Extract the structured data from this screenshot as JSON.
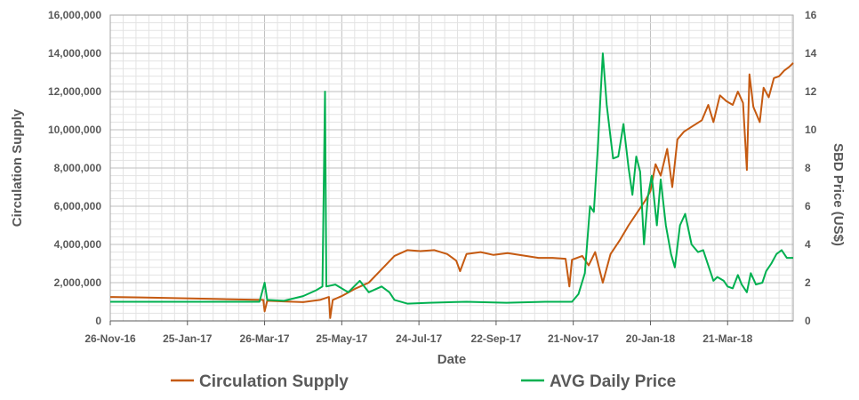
{
  "chart_data": {
    "type": "line",
    "xlabel": "Date",
    "ylabel_left": "Circulation Supply",
    "ylabel_right": "SBD Price (US$)",
    "x_ticks": [
      "26-Nov-16",
      "25-Jan-17",
      "26-Mar-17",
      "25-May-17",
      "24-Jul-17",
      "22-Sep-17",
      "21-Nov-17",
      "20-Jan-18",
      "21-Mar-18"
    ],
    "xlim": [
      "2016-11-26",
      "2018-05-11"
    ],
    "ylim_left": [
      0,
      16000000
    ],
    "ylim_right": [
      0,
      16
    ],
    "y_ticks_left": [
      "0",
      "2,000,000",
      "4,000,000",
      "6,000,000",
      "8,000,000",
      "10,000,000",
      "12,000,000",
      "14,000,000",
      "16,000,000"
    ],
    "y_ticks_right": [
      "0",
      "2",
      "4",
      "6",
      "8",
      "10",
      "12",
      "14",
      "16"
    ],
    "grid": true,
    "legend": "bottom",
    "series": [
      {
        "name": "Circulation Supply",
        "axis": "left",
        "color": "#C55A11",
        "points": [
          [
            "2016-11-26",
            1250000
          ],
          [
            "2016-12-20",
            1230000
          ],
          [
            "2017-01-15",
            1190000
          ],
          [
            "2017-02-10",
            1160000
          ],
          [
            "2017-03-05",
            1120000
          ],
          [
            "2017-03-25",
            1100000
          ],
          [
            "2017-03-26",
            500000
          ],
          [
            "2017-03-28",
            1050000
          ],
          [
            "2017-04-10",
            1020000
          ],
          [
            "2017-04-25",
            980000
          ],
          [
            "2017-05-08",
            1100000
          ],
          [
            "2017-05-15",
            1250000
          ],
          [
            "2017-05-16",
            150000
          ],
          [
            "2017-05-18",
            1100000
          ],
          [
            "2017-05-25",
            1300000
          ],
          [
            "2017-06-05",
            1700000
          ],
          [
            "2017-06-15",
            2000000
          ],
          [
            "2017-06-25",
            2700000
          ],
          [
            "2017-07-05",
            3400000
          ],
          [
            "2017-07-15",
            3700000
          ],
          [
            "2017-07-25",
            3650000
          ],
          [
            "2017-08-05",
            3700000
          ],
          [
            "2017-08-15",
            3500000
          ],
          [
            "2017-08-22",
            3150000
          ],
          [
            "2017-08-25",
            2600000
          ],
          [
            "2017-08-30",
            3500000
          ],
          [
            "2017-09-10",
            3600000
          ],
          [
            "2017-09-20",
            3450000
          ],
          [
            "2017-10-01",
            3550000
          ],
          [
            "2017-10-15",
            3400000
          ],
          [
            "2017-10-25",
            3300000
          ],
          [
            "2017-11-05",
            3300000
          ],
          [
            "2017-11-15",
            3250000
          ],
          [
            "2017-11-18",
            1800000
          ],
          [
            "2017-11-20",
            3200000
          ],
          [
            "2017-11-28",
            3400000
          ],
          [
            "2017-12-03",
            2900000
          ],
          [
            "2017-12-08",
            3600000
          ],
          [
            "2017-12-14",
            2000000
          ],
          [
            "2017-12-20",
            3500000
          ],
          [
            "2017-12-27",
            4200000
          ],
          [
            "2018-01-03",
            5000000
          ],
          [
            "2018-01-10",
            5700000
          ],
          [
            "2018-01-16",
            6300000
          ],
          [
            "2018-01-20",
            6800000
          ],
          [
            "2018-01-24",
            8200000
          ],
          [
            "2018-01-28",
            7600000
          ],
          [
            "2018-02-02",
            9000000
          ],
          [
            "2018-02-06",
            7000000
          ],
          [
            "2018-02-10",
            9500000
          ],
          [
            "2018-02-15",
            9900000
          ],
          [
            "2018-02-22",
            10200000
          ],
          [
            "2018-03-01",
            10500000
          ],
          [
            "2018-03-06",
            11300000
          ],
          [
            "2018-03-10",
            10400000
          ],
          [
            "2018-03-15",
            11800000
          ],
          [
            "2018-03-20",
            11500000
          ],
          [
            "2018-03-25",
            11300000
          ],
          [
            "2018-03-29",
            12000000
          ],
          [
            "2018-04-02",
            11400000
          ],
          [
            "2018-04-05",
            7900000
          ],
          [
            "2018-04-07",
            12900000
          ],
          [
            "2018-04-10",
            11200000
          ],
          [
            "2018-04-15",
            10400000
          ],
          [
            "2018-04-18",
            12200000
          ],
          [
            "2018-04-22",
            11700000
          ],
          [
            "2018-04-26",
            12700000
          ],
          [
            "2018-04-30",
            12800000
          ],
          [
            "2018-05-04",
            13100000
          ],
          [
            "2018-05-08",
            13300000
          ],
          [
            "2018-05-11",
            13500000
          ]
        ]
      },
      {
        "name": "AVG Daily Price",
        "axis": "right",
        "color": "#00B050",
        "points": [
          [
            "2016-11-26",
            1.0
          ],
          [
            "2017-01-01",
            1.0
          ],
          [
            "2017-02-15",
            1.0
          ],
          [
            "2017-03-22",
            1.0
          ],
          [
            "2017-03-26",
            2.0
          ],
          [
            "2017-03-28",
            1.1
          ],
          [
            "2017-04-10",
            1.05
          ],
          [
            "2017-04-25",
            1.3
          ],
          [
            "2017-05-05",
            1.6
          ],
          [
            "2017-05-10",
            1.8
          ],
          [
            "2017-05-12",
            12.0
          ],
          [
            "2017-05-13",
            1.8
          ],
          [
            "2017-05-20",
            1.9
          ],
          [
            "2017-05-30",
            1.5
          ],
          [
            "2017-06-08",
            2.1
          ],
          [
            "2017-06-15",
            1.5
          ],
          [
            "2017-06-25",
            1.8
          ],
          [
            "2017-07-01",
            1.5
          ],
          [
            "2017-07-05",
            1.1
          ],
          [
            "2017-07-15",
            0.9
          ],
          [
            "2017-08-01",
            0.95
          ],
          [
            "2017-08-30",
            1.0
          ],
          [
            "2017-09-30",
            0.95
          ],
          [
            "2017-10-30",
            1.0
          ],
          [
            "2017-11-20",
            1.0
          ],
          [
            "2017-11-25",
            1.4
          ],
          [
            "2017-11-30",
            2.5
          ],
          [
            "2017-12-04",
            6.0
          ],
          [
            "2017-12-07",
            5.7
          ],
          [
            "2017-12-10",
            9.0
          ],
          [
            "2017-12-14",
            14.0
          ],
          [
            "2017-12-17",
            11.3
          ],
          [
            "2017-12-20",
            9.6
          ],
          [
            "2017-12-22",
            8.5
          ],
          [
            "2017-12-26",
            8.6
          ],
          [
            "2017-12-30",
            10.3
          ],
          [
            "2018-01-03",
            8.0
          ],
          [
            "2018-01-06",
            6.6
          ],
          [
            "2018-01-09",
            8.6
          ],
          [
            "2018-01-12",
            7.8
          ],
          [
            "2018-01-15",
            4.0
          ],
          [
            "2018-01-18",
            6.5
          ],
          [
            "2018-01-21",
            7.6
          ],
          [
            "2018-01-25",
            5.0
          ],
          [
            "2018-01-28",
            7.4
          ],
          [
            "2018-02-01",
            5.0
          ],
          [
            "2018-02-05",
            3.5
          ],
          [
            "2018-02-08",
            2.8
          ],
          [
            "2018-02-12",
            5.0
          ],
          [
            "2018-02-16",
            5.6
          ],
          [
            "2018-02-21",
            4.0
          ],
          [
            "2018-02-26",
            3.6
          ],
          [
            "2018-03-02",
            3.7
          ],
          [
            "2018-03-06",
            2.9
          ],
          [
            "2018-03-10",
            2.1
          ],
          [
            "2018-03-13",
            2.3
          ],
          [
            "2018-03-18",
            2.1
          ],
          [
            "2018-03-21",
            1.8
          ],
          [
            "2018-03-25",
            1.7
          ],
          [
            "2018-03-29",
            2.4
          ],
          [
            "2018-04-01",
            1.9
          ],
          [
            "2018-04-05",
            1.5
          ],
          [
            "2018-04-08",
            2.5
          ],
          [
            "2018-04-12",
            1.9
          ],
          [
            "2018-04-17",
            2.0
          ],
          [
            "2018-04-20",
            2.6
          ],
          [
            "2018-04-24",
            3.0
          ],
          [
            "2018-04-28",
            3.5
          ],
          [
            "2018-05-02",
            3.7
          ],
          [
            "2018-05-06",
            3.3
          ],
          [
            "2018-05-11",
            3.3
          ]
        ]
      }
    ]
  }
}
